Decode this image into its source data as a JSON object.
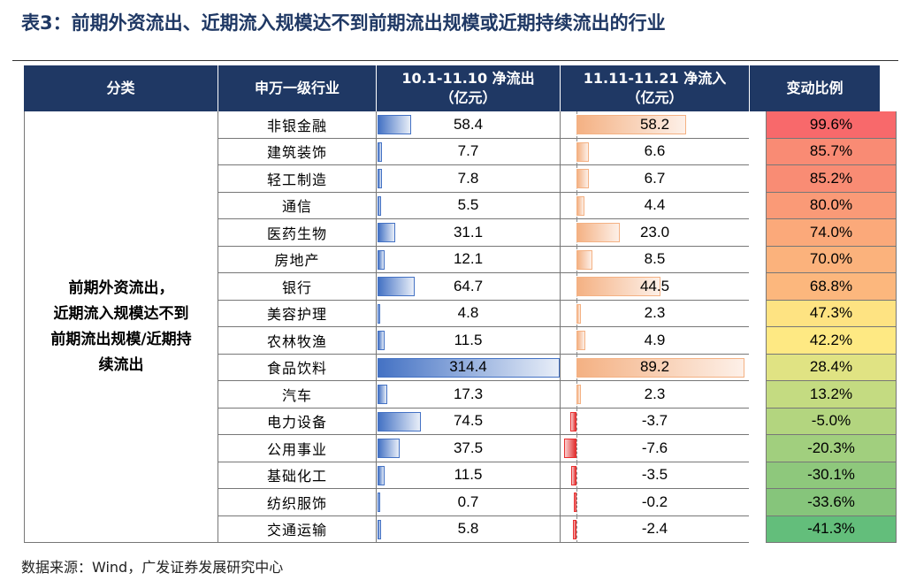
{
  "title": "表3：前期外资流出、近期流入规模达不到前期流出规模或近期持续流出的行业",
  "headers": {
    "category": "分类",
    "industry": "申万一级行业",
    "outflow_line1": "10.1-11.10 净流出",
    "outflow_line2": "（亿元）",
    "inflow_line1": "11.11-11.21 净流入",
    "inflow_line2": "（亿元）",
    "change": "变动比例"
  },
  "category_lines": [
    "前期外资流出，",
    "近期流入规模达不到",
    "前期流出规模/近期持",
    "续流出"
  ],
  "rows": [
    {
      "industry": "非银金融",
      "outflow": "58.4",
      "inflow": "58.2",
      "change": "99.6%",
      "outflow_value": 58.4,
      "inflow_value": 58.2,
      "change_color": "#f8696b"
    },
    {
      "industry": "建筑装饰",
      "outflow": "7.7",
      "inflow": "6.6",
      "change": "85.7%",
      "outflow_value": 7.7,
      "inflow_value": 6.6,
      "change_color": "#f98b74"
    },
    {
      "industry": "轻工制造",
      "outflow": "7.8",
      "inflow": "6.7",
      "change": "85.2%",
      "outflow_value": 7.8,
      "inflow_value": 6.7,
      "change_color": "#f98c74"
    },
    {
      "industry": "通信",
      "outflow": "5.5",
      "inflow": "4.4",
      "change": "80.0%",
      "outflow_value": 5.5,
      "inflow_value": 4.4,
      "change_color": "#fa9a77"
    },
    {
      "industry": "医药生物",
      "outflow": "31.1",
      "inflow": "23.0",
      "change": "74.0%",
      "outflow_value": 31.1,
      "inflow_value": 23.0,
      "change_color": "#fba97a"
    },
    {
      "industry": "房地产",
      "outflow": "12.1",
      "inflow": "8.5",
      "change": "70.0%",
      "outflow_value": 12.1,
      "inflow_value": 8.5,
      "change_color": "#fbb27c"
    },
    {
      "industry": "银行",
      "outflow": "64.7",
      "inflow": "44.5",
      "change": "68.8%",
      "outflow_value": 64.7,
      "inflow_value": 44.5,
      "change_color": "#fcb77d"
    },
    {
      "industry": "美容护理",
      "outflow": "4.8",
      "inflow": "2.3",
      "change": "47.3%",
      "outflow_value": 4.8,
      "inflow_value": 2.3,
      "change_color": "#fee382"
    },
    {
      "industry": "农林牧渔",
      "outflow": "11.5",
      "inflow": "4.9",
      "change": "42.2%",
      "outflow_value": 11.5,
      "inflow_value": 4.9,
      "change_color": "#fee983"
    },
    {
      "industry": "食品饮料",
      "outflow": "314.4",
      "inflow": "89.2",
      "change": "28.4%",
      "outflow_value": 314.4,
      "inflow_value": 89.2,
      "change_color": "#e0e383"
    },
    {
      "industry": "汽车",
      "outflow": "17.3",
      "inflow": "2.3",
      "change": "13.2%",
      "outflow_value": 17.3,
      "inflow_value": 2.3,
      "change_color": "#c4db81"
    },
    {
      "industry": "电力设备",
      "outflow": "74.5",
      "inflow": "-3.7",
      "change": "-5.0%",
      "outflow_value": 74.5,
      "inflow_value": -3.7,
      "change_color": "#b3d57f"
    },
    {
      "industry": "公用事业",
      "outflow": "37.5",
      "inflow": "-7.6",
      "change": "-20.3%",
      "outflow_value": 37.5,
      "inflow_value": -7.6,
      "change_color": "#a1cf7e"
    },
    {
      "industry": "基础化工",
      "outflow": "11.5",
      "inflow": "-3.5",
      "change": "-30.1%",
      "outflow_value": 11.5,
      "inflow_value": -3.5,
      "change_color": "#8ec87c"
    },
    {
      "industry": "纺织服饰",
      "outflow": "0.7",
      "inflow": "-0.2",
      "change": "-33.6%",
      "outflow_value": 0.7,
      "inflow_value": -0.2,
      "change_color": "#86c57b"
    },
    {
      "industry": "交通运输",
      "outflow": "5.8",
      "inflow": "-2.4",
      "change": "-41.3%",
      "outflow_value": 5.8,
      "inflow_value": -2.4,
      "change_color": "#63be7b"
    }
  ],
  "source": "数据来源：Wind，广发证券发展研究中心"
}
